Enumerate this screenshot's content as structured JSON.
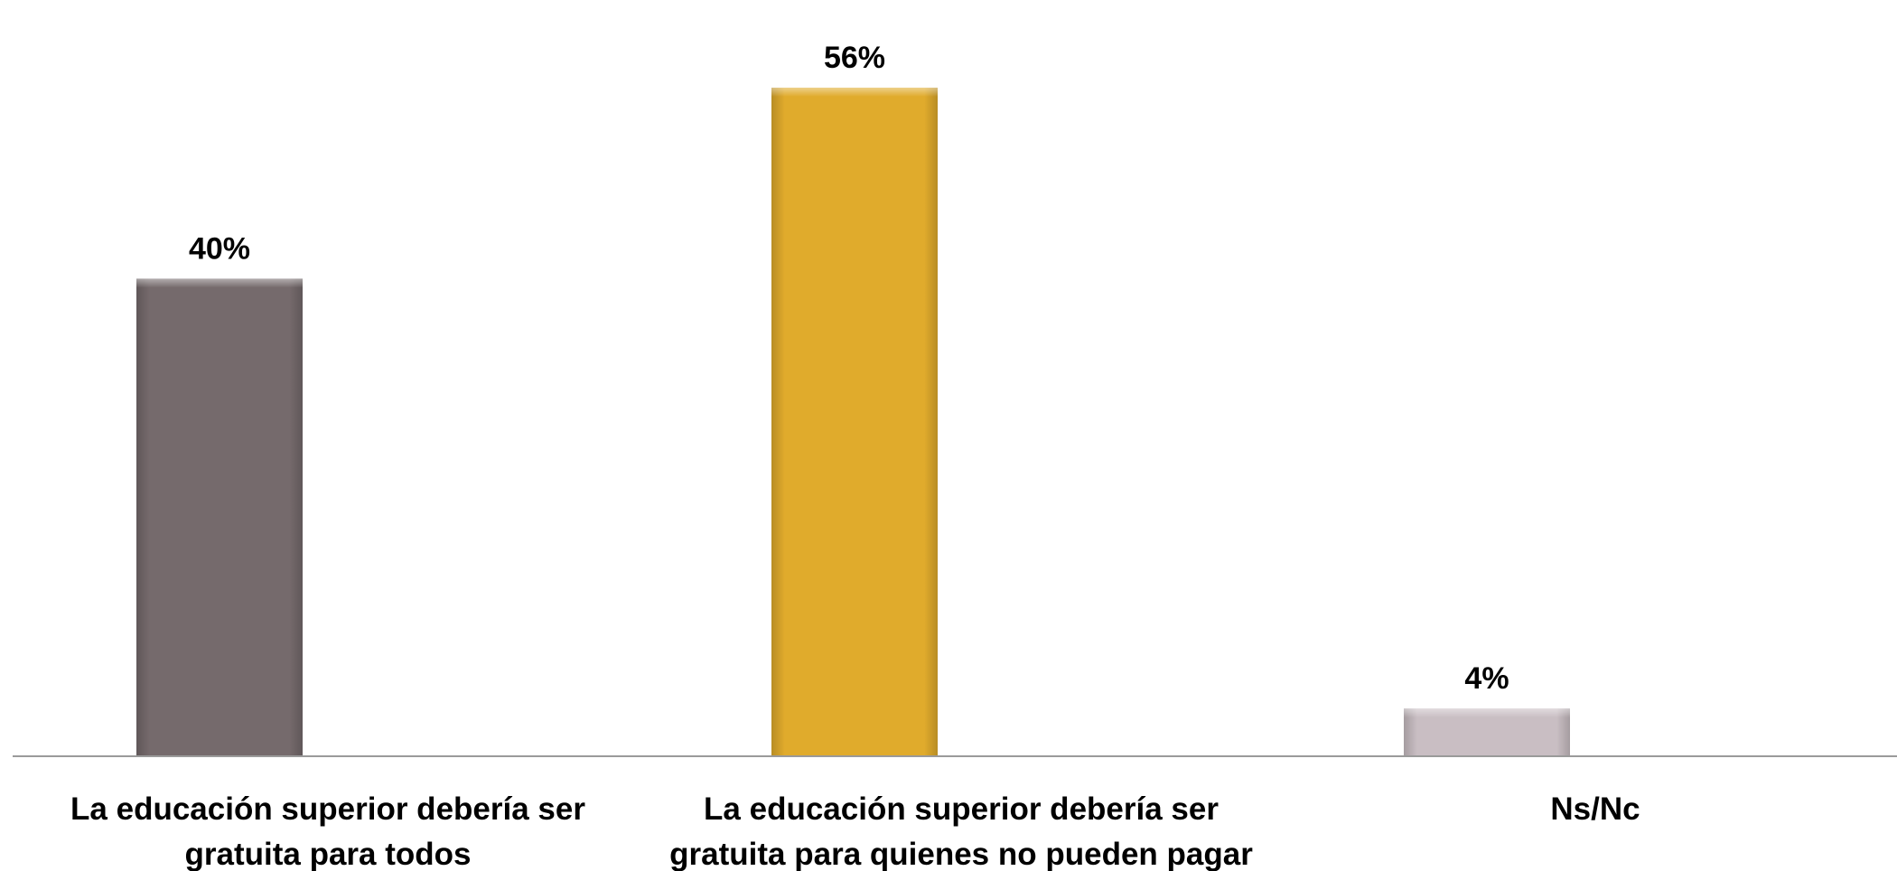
{
  "chart_data": {
    "type": "bar",
    "categories": [
      [
        "La educación superior debería ser",
        "gratuita para todos"
      ],
      [
        "La educación superior debería ser",
        "gratuita para quienes no pueden pagar"
      ],
      [
        "Ns/Nc"
      ]
    ],
    "values": [
      40,
      56,
      4
    ],
    "data_labels": [
      "40%",
      "56%",
      "4%"
    ],
    "colors": [
      "#756a6c",
      "#e0ab2c",
      "#c9bec3"
    ],
    "title": "",
    "xlabel": "",
    "ylabel": "",
    "ylim": [
      0,
      56
    ],
    "grid": false,
    "legend": "none",
    "axis_color": "#9a9a9a"
  }
}
